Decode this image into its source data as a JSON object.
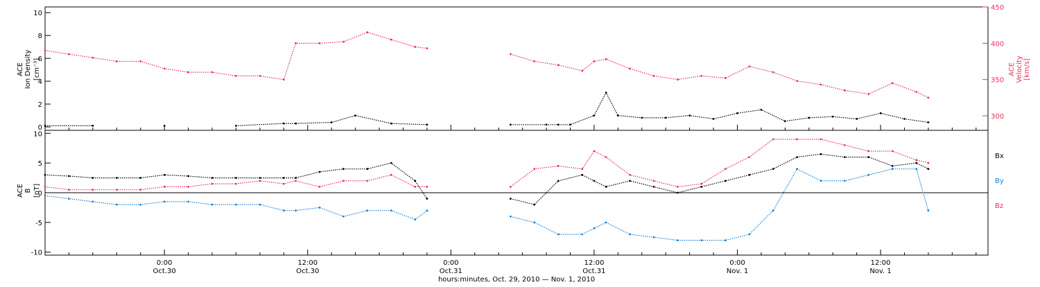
{
  "colors": {
    "black": "#000000",
    "pink": "#e8305a",
    "blue": "#1a7fd6",
    "axis": "#000000"
  },
  "top_panel": {
    "ylabel_lines": [
      "ACE",
      "Ion Density",
      "[cm⁻³]"
    ],
    "right_ylabel_lines": [
      "ACE",
      "Velocity",
      "[km/s]"
    ]
  },
  "bottom_panel": {
    "ylabel_lines": [
      "ACE",
      "B",
      "[nT]"
    ],
    "legend": [
      "Bx",
      "By",
      "Bz"
    ]
  },
  "x_ticks": [
    {
      "hours": 24,
      "line1": "0:00",
      "line2": "Oct.30"
    },
    {
      "hours": 36,
      "line1": "12:00",
      "line2": "Oct.30"
    },
    {
      "hours": 48,
      "line1": "0:00",
      "line2": "Oct.31"
    },
    {
      "hours": 60,
      "line1": "12:00",
      "line2": "Oct.31"
    },
    {
      "hours": 72,
      "line1": "0:00",
      "line2": "Nov. 1"
    },
    {
      "hours": 84,
      "line1": "12:00",
      "line2": "Nov. 1"
    }
  ],
  "xlabel": "hours:minutes, Oct. 29, 2010 — Nov. 1, 2010",
  "chart_data": [
    {
      "type": "scatter",
      "panel": "top",
      "xlabel": "hours:minutes, Oct. 29, 2010 — Nov. 1, 2010",
      "xlim_hours_from_oct29_0000": [
        14,
        93
      ],
      "ylim": [
        -0.3,
        10.5
      ],
      "yticks": [
        0,
        2,
        4,
        6,
        8,
        10
      ],
      "y2lim": [
        280,
        450
      ],
      "y2ticks": [
        300,
        350,
        400,
        450
      ],
      "series": [
        {
          "name": "Ion Density",
          "axis": "left",
          "color": "black",
          "x": [
            14,
            18,
            24,
            30,
            34,
            35,
            38,
            40,
            43,
            46,
            53,
            56,
            57,
            58,
            60,
            61,
            62,
            64,
            66,
            68,
            70,
            72,
            74,
            76,
            78,
            80,
            82,
            84,
            86,
            88
          ],
          "y": [
            0.1,
            0.1,
            0.1,
            0.1,
            0.3,
            0.3,
            0.4,
            1.0,
            0.3,
            0.2,
            0.2,
            0.2,
            0.2,
            0.2,
            1.0,
            3.0,
            1.0,
            0.8,
            0.8,
            1.0,
            0.7,
            1.2,
            1.5,
            0.5,
            0.8,
            0.9,
            0.7,
            1.2,
            0.7,
            0.4
          ]
        },
        {
          "name": "Velocity",
          "axis": "right",
          "color": "pink",
          "x": [
            14,
            16,
            18,
            20,
            22,
            24,
            26,
            28,
            30,
            32,
            34,
            35,
            37,
            39,
            41,
            43,
            45,
            46,
            53,
            55,
            57,
            59,
            60,
            61,
            63,
            65,
            67,
            69,
            71,
            73,
            75,
            77,
            79,
            81,
            83,
            85,
            87,
            88
          ],
          "y": [
            390,
            385,
            380,
            375,
            375,
            365,
            360,
            360,
            355,
            355,
            350,
            400,
            400,
            402,
            415,
            405,
            395,
            393,
            385,
            375,
            370,
            362,
            375,
            378,
            365,
            355,
            350,
            355,
            352,
            368,
            360,
            348,
            343,
            335,
            330,
            345,
            333,
            325
          ]
        }
      ]
    },
    {
      "type": "scatter",
      "panel": "bottom",
      "xlabel": "hours:minutes, Oct. 29, 2010 — Nov. 1, 2010",
      "xlim_hours_from_oct29_0000": [
        14,
        93
      ],
      "ylim": [
        -10.5,
        10.5
      ],
      "yticks": [
        -10,
        -5,
        0,
        5,
        10
      ],
      "zero_line": true,
      "series": [
        {
          "name": "Bx",
          "color": "black",
          "x": [
            14,
            16,
            18,
            20,
            22,
            24,
            26,
            28,
            30,
            32,
            34,
            35,
            37,
            39,
            41,
            43,
            45,
            46,
            53,
            55,
            57,
            59,
            60,
            61,
            63,
            65,
            67,
            69,
            71,
            73,
            75,
            77,
            79,
            81,
            83,
            85,
            87,
            88
          ],
          "y": [
            3,
            2.8,
            2.5,
            2.5,
            2.5,
            3,
            2.8,
            2.5,
            2.5,
            2.5,
            2.5,
            2.5,
            3.5,
            4,
            4,
            5,
            2,
            -1,
            -1,
            -2,
            2,
            3,
            2,
            1,
            2,
            1,
            0,
            1,
            2,
            3,
            4,
            6,
            6.5,
            6,
            6,
            4.5,
            5,
            4
          ]
        },
        {
          "name": "By",
          "color": "blue",
          "x": [
            14,
            16,
            18,
            20,
            22,
            24,
            26,
            28,
            30,
            32,
            34,
            35,
            37,
            39,
            41,
            43,
            45,
            46,
            53,
            55,
            57,
            59,
            60,
            61,
            63,
            65,
            67,
            69,
            71,
            73,
            75,
            77,
            79,
            81,
            83,
            85,
            87,
            88
          ],
          "y": [
            -0.5,
            -1,
            -1.5,
            -2,
            -2,
            -1.5,
            -1.5,
            -2,
            -2,
            -2,
            -3,
            -3,
            -2.5,
            -4,
            -3,
            -3,
            -4.5,
            -3,
            -4,
            -5,
            -7,
            -7,
            -6,
            -5,
            -7,
            -7.5,
            -8,
            -8,
            -8,
            -7,
            -3,
            4,
            2,
            2,
            3,
            4,
            4,
            -3
          ]
        },
        {
          "name": "Bz",
          "color": "pink",
          "x": [
            14,
            16,
            18,
            20,
            22,
            24,
            26,
            28,
            30,
            32,
            34,
            35,
            37,
            39,
            41,
            43,
            45,
            46,
            53,
            55,
            57,
            59,
            60,
            61,
            63,
            65,
            67,
            69,
            71,
            73,
            75,
            77,
            79,
            81,
            83,
            85,
            87,
            88
          ],
          "y": [
            1,
            0.5,
            0.5,
            0.5,
            0.5,
            1,
            1,
            1.5,
            1.5,
            2,
            1.5,
            2,
            1,
            2,
            2,
            3,
            1,
            1,
            1,
            4,
            4.5,
            4,
            7,
            6,
            3,
            2,
            1,
            1.5,
            4,
            6,
            9,
            9,
            9,
            8,
            7,
            7,
            5.5,
            5
          ]
        }
      ]
    }
  ]
}
